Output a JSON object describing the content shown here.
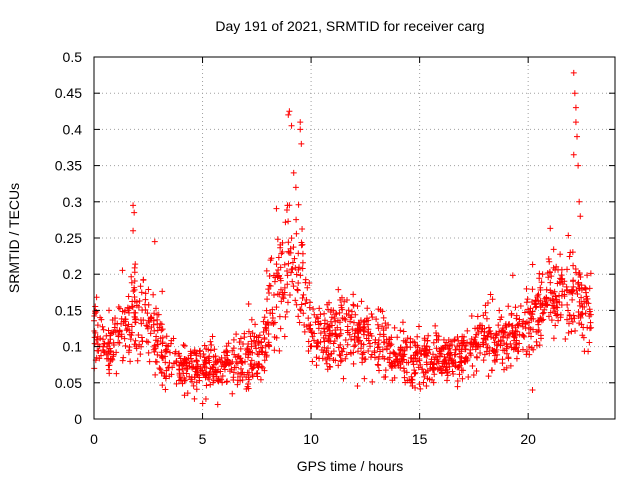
{
  "chart_data": {
    "type": "scatter",
    "title": "Day 191 of 2021, SRMTID for receiver carg",
    "xlabel": "GPS time / hours",
    "ylabel": "SRMTID / TECUs",
    "xlim": [
      0,
      24
    ],
    "ylim": [
      0,
      0.5
    ],
    "xticks": [
      0,
      5,
      10,
      15,
      20
    ],
    "xtick_labels": [
      "0",
      "5",
      "10",
      "15",
      "20"
    ],
    "yticks": [
      0,
      0.05,
      0.1,
      0.15,
      0.2,
      0.25,
      0.3,
      0.35,
      0.4,
      0.45,
      0.5
    ],
    "ytick_labels": [
      "0",
      "0.05",
      "0.1",
      "0.15",
      "0.2",
      "0.25",
      "0.3",
      "0.35",
      "0.4",
      "0.45",
      "0.5"
    ],
    "grid": true,
    "marker": "+",
    "color": "#ff0000",
    "trend": [
      {
        "x": 0.0,
        "y": 0.12,
        "spread": 0.04
      },
      {
        "x": 0.5,
        "y": 0.09,
        "spread": 0.035
      },
      {
        "x": 1.0,
        "y": 0.11,
        "spread": 0.04
      },
      {
        "x": 1.5,
        "y": 0.13,
        "spread": 0.05
      },
      {
        "x": 2.0,
        "y": 0.15,
        "spread": 0.06
      },
      {
        "x": 2.5,
        "y": 0.13,
        "spread": 0.05
      },
      {
        "x": 3.0,
        "y": 0.1,
        "spread": 0.04
      },
      {
        "x": 3.5,
        "y": 0.08,
        "spread": 0.03
      },
      {
        "x": 4.0,
        "y": 0.075,
        "spread": 0.03
      },
      {
        "x": 5.0,
        "y": 0.065,
        "spread": 0.03
      },
      {
        "x": 6.0,
        "y": 0.07,
        "spread": 0.03
      },
      {
        "x": 7.0,
        "y": 0.08,
        "spread": 0.035
      },
      {
        "x": 7.8,
        "y": 0.1,
        "spread": 0.04
      },
      {
        "x": 8.3,
        "y": 0.17,
        "spread": 0.06
      },
      {
        "x": 9.0,
        "y": 0.21,
        "spread": 0.08
      },
      {
        "x": 9.6,
        "y": 0.2,
        "spread": 0.07
      },
      {
        "x": 10.0,
        "y": 0.11,
        "spread": 0.04
      },
      {
        "x": 11.0,
        "y": 0.11,
        "spread": 0.04
      },
      {
        "x": 12.0,
        "y": 0.12,
        "spread": 0.045
      },
      {
        "x": 13.0,
        "y": 0.1,
        "spread": 0.04
      },
      {
        "x": 14.0,
        "y": 0.085,
        "spread": 0.035
      },
      {
        "x": 15.0,
        "y": 0.08,
        "spread": 0.03
      },
      {
        "x": 16.0,
        "y": 0.085,
        "spread": 0.03
      },
      {
        "x": 17.0,
        "y": 0.085,
        "spread": 0.03
      },
      {
        "x": 18.0,
        "y": 0.11,
        "spread": 0.04
      },
      {
        "x": 19.0,
        "y": 0.11,
        "spread": 0.04
      },
      {
        "x": 20.0,
        "y": 0.13,
        "spread": 0.04
      },
      {
        "x": 21.0,
        "y": 0.17,
        "spread": 0.05
      },
      {
        "x": 22.0,
        "y": 0.18,
        "spread": 0.055
      },
      {
        "x": 22.8,
        "y": 0.15,
        "spread": 0.05
      }
    ],
    "x_range": [
      0,
      22.9
    ],
    "point_count": 1700,
    "highlight_points": [
      {
        "x": 22.1,
        "y": 0.478
      },
      {
        "x": 22.15,
        "y": 0.45
      },
      {
        "x": 22.2,
        "y": 0.43
      },
      {
        "x": 22.2,
        "y": 0.41
      },
      {
        "x": 22.25,
        "y": 0.39
      },
      {
        "x": 22.1,
        "y": 0.365
      },
      {
        "x": 22.3,
        "y": 0.35
      },
      {
        "x": 22.35,
        "y": 0.3
      },
      {
        "x": 22.4,
        "y": 0.28
      },
      {
        "x": 9.0,
        "y": 0.425
      },
      {
        "x": 8.95,
        "y": 0.42
      },
      {
        "x": 9.1,
        "y": 0.405
      },
      {
        "x": 9.5,
        "y": 0.41
      },
      {
        "x": 9.5,
        "y": 0.4
      },
      {
        "x": 9.55,
        "y": 0.38
      },
      {
        "x": 9.2,
        "y": 0.34
      },
      {
        "x": 9.3,
        "y": 0.32
      },
      {
        "x": 1.8,
        "y": 0.295
      },
      {
        "x": 1.85,
        "y": 0.285
      },
      {
        "x": 1.8,
        "y": 0.26
      },
      {
        "x": 2.8,
        "y": 0.245
      },
      {
        "x": 20.2,
        "y": 0.04
      },
      {
        "x": 5.7,
        "y": 0.02
      }
    ]
  }
}
